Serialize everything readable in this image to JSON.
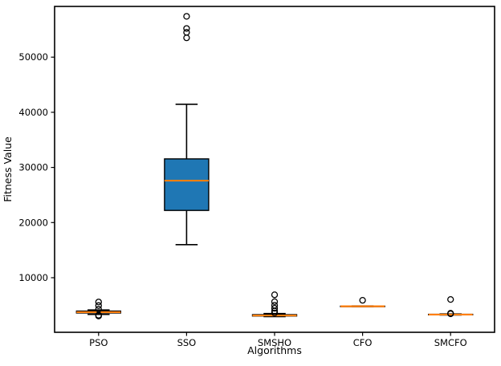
{
  "chart_data": {
    "type": "boxplot",
    "title": "",
    "xlabel": "Algorithms",
    "ylabel": "Fitness Value",
    "categories": [
      "PSO",
      "SSO",
      "SMSHO",
      "CFO",
      "SMCFO"
    ],
    "ylim": [
      100,
      59200
    ],
    "yticks": [
      10000,
      20000,
      30000,
      40000,
      50000
    ],
    "grid": false,
    "legend": "none",
    "box_fill_color": "#1f77b4",
    "box_edge_color": "#000000",
    "median_color": "#ff7f0e",
    "series": [
      {
        "name": "PSO",
        "whislo": 3350,
        "q1": 3600,
        "med": 3750,
        "q3": 3950,
        "whishi": 4150,
        "fliers": [
          5600,
          4950,
          4300,
          3200,
          3050
        ]
      },
      {
        "name": "SSO",
        "whislo": 16000,
        "q1": 22200,
        "med": 27600,
        "q3": 31550,
        "whishi": 41450,
        "fliers": [
          57400,
          55200,
          54500,
          53500
        ]
      },
      {
        "name": "SMSHO",
        "whislo": 2950,
        "q1": 3050,
        "med": 3150,
        "q3": 3300,
        "whishi": 3500,
        "fliers": [
          6900,
          5650,
          5000,
          4450,
          3950,
          3600
        ]
      },
      {
        "name": "CFO",
        "whislo": 4760,
        "q1": 4790,
        "med": 4810,
        "q3": 4840,
        "whishi": 4870,
        "fliers": [
          5900
        ]
      },
      {
        "name": "SMCFO",
        "whislo": 3230,
        "q1": 3270,
        "med": 3310,
        "q3": 3360,
        "whishi": 3430,
        "fliers": [
          6050,
          3550,
          3450
        ]
      }
    ]
  }
}
